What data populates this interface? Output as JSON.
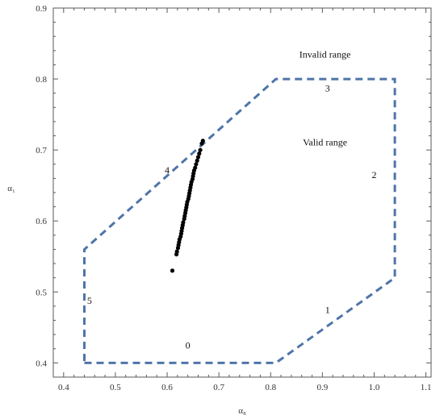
{
  "chart_data": {
    "type": "scatter",
    "title": "",
    "xlabel": "α₈",
    "ylabel": "α₁",
    "xlim": [
      0.38,
      1.11
    ],
    "ylim": [
      0.38,
      0.9
    ],
    "x_ticks": [
      "0.4",
      "0.5",
      "0.6",
      "0.7",
      "0.8",
      "0.9",
      "1.0",
      "1.1"
    ],
    "y_ticks": [
      "0.4",
      "0.5",
      "0.6",
      "0.7",
      "0.8",
      "0.9"
    ],
    "frame_ticks": true,
    "grid": false,
    "boundary": {
      "style": "dashed",
      "color": "#4f74a8",
      "vertices": [
        [
          0.44,
          0.4
        ],
        [
          0.81,
          0.4
        ],
        [
          1.04,
          0.52
        ],
        [
          1.04,
          0.8
        ],
        [
          0.81,
          0.8
        ],
        [
          0.44,
          0.56
        ],
        [
          0.44,
          0.4
        ]
      ]
    },
    "boundary_labels": [
      {
        "text": "0",
        "x": 0.64,
        "y": 0.425
      },
      {
        "text": "1",
        "x": 0.91,
        "y": 0.475
      },
      {
        "text": "2",
        "x": 1.0,
        "y": 0.665
      },
      {
        "text": "3",
        "x": 0.91,
        "y": 0.787
      },
      {
        "text": "4",
        "x": 0.6,
        "y": 0.672
      },
      {
        "text": "5",
        "x": 0.45,
        "y": 0.488
      }
    ],
    "annotations": [
      {
        "text": "Invalid range",
        "x": 0.905,
        "y": 0.835
      },
      {
        "text": "Valid range",
        "x": 0.905,
        "y": 0.711
      }
    ],
    "series": [
      {
        "color": "#000000",
        "points": [
          [
            0.61,
            0.53
          ],
          [
            0.618,
            0.553
          ],
          [
            0.619,
            0.557
          ],
          [
            0.621,
            0.562
          ],
          [
            0.622,
            0.566
          ],
          [
            0.623,
            0.57
          ],
          [
            0.624,
            0.574
          ],
          [
            0.626,
            0.578
          ],
          [
            0.627,
            0.582
          ],
          [
            0.628,
            0.586
          ],
          [
            0.629,
            0.59
          ],
          [
            0.63,
            0.594
          ],
          [
            0.631,
            0.598
          ],
          [
            0.633,
            0.603
          ],
          [
            0.634,
            0.607
          ],
          [
            0.635,
            0.611
          ],
          [
            0.636,
            0.615
          ],
          [
            0.637,
            0.619
          ],
          [
            0.638,
            0.623
          ],
          [
            0.639,
            0.627
          ],
          [
            0.641,
            0.631
          ],
          [
            0.642,
            0.635
          ],
          [
            0.643,
            0.639
          ],
          [
            0.644,
            0.643
          ],
          [
            0.645,
            0.647
          ],
          [
            0.646,
            0.651
          ],
          [
            0.647,
            0.655
          ],
          [
            0.649,
            0.659
          ],
          [
            0.65,
            0.663
          ],
          [
            0.651,
            0.667
          ],
          [
            0.652,
            0.671
          ],
          [
            0.654,
            0.675
          ],
          [
            0.656,
            0.68
          ],
          [
            0.658,
            0.685
          ],
          [
            0.66,
            0.69
          ],
          [
            0.662,
            0.695
          ],
          [
            0.664,
            0.7
          ],
          [
            0.667,
            0.709
          ],
          [
            0.669,
            0.713
          ]
        ]
      }
    ]
  }
}
